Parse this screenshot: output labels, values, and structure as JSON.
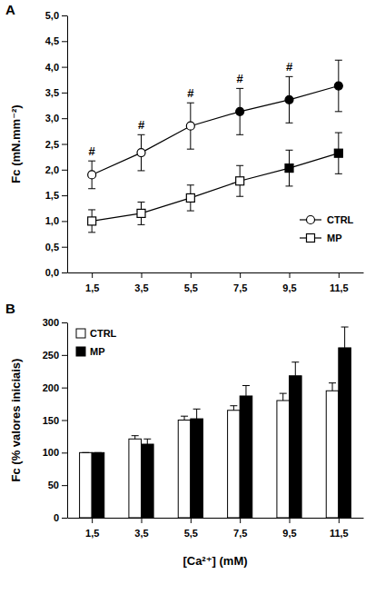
{
  "chart_data": [
    {
      "type": "line",
      "title": "A",
      "ylabel": "Fc (mN.mm⁻²)",
      "categories": [
        "1,5",
        "3,5",
        "5,5",
        "7,5",
        "9,5",
        "11,5"
      ],
      "series": [
        {
          "name": "CTRL",
          "color": "#000000",
          "colors": [
            "#ffffff",
            "#ffffff",
            "#ffffff",
            "#000000",
            "#000000",
            "#000000"
          ],
          "marker": "circle",
          "line_style": "solid",
          "values": [
            1.9,
            2.33,
            2.85,
            3.13,
            3.36,
            3.63
          ],
          "errors": [
            0.27,
            0.35,
            0.45,
            0.45,
            0.45,
            0.5
          ]
        },
        {
          "name": "MP",
          "color": "#000000",
          "colors": [
            "#ffffff",
            "#ffffff",
            "#ffffff",
            "#ffffff",
            "#000000",
            "#000000"
          ],
          "marker": "square",
          "line_style": "solid",
          "values": [
            1.0,
            1.15,
            1.45,
            1.78,
            2.03,
            2.32
          ],
          "errors": [
            0.22,
            0.22,
            0.25,
            0.3,
            0.35,
            0.4
          ]
        }
      ],
      "ylim": [
        0,
        5
      ],
      "yticks": [
        {
          "value": 0,
          "label": "0,0"
        },
        {
          "value": 0.5,
          "label": "0,5"
        },
        {
          "value": 1,
          "label": "1,0"
        },
        {
          "value": 1.5,
          "label": "1,5"
        },
        {
          "value": 2,
          "label": "2,0"
        },
        {
          "value": 2.5,
          "label": "2,5"
        },
        {
          "value": 3,
          "label": "3,0"
        },
        {
          "value": 3.5,
          "label": "3,5"
        },
        {
          "value": 4,
          "label": "4,0"
        },
        {
          "value": 4.5,
          "label": "4,5"
        },
        {
          "value": 5,
          "label": "5,0"
        }
      ],
      "legend": "lower right",
      "annotations": [
        {
          "text": "#",
          "category": "1,5"
        },
        {
          "text": "#",
          "category": "3,5"
        },
        {
          "text": "#",
          "category": "5,5"
        },
        {
          "text": "#",
          "category": "7,5"
        },
        {
          "text": "#",
          "category": "9,5"
        }
      ]
    },
    {
      "type": "bar",
      "title": "B",
      "xlabel": "[Ca²⁺] (mM)",
      "ylabel": "Fc (% valores iniciais)",
      "categories": [
        "1,5",
        "3,5",
        "5,5",
        "7,5",
        "9,5",
        "11,5"
      ],
      "series": [
        {
          "name": "CTRL",
          "color": "#ffffff",
          "values": [
            100,
            121,
            150,
            165,
            180,
            195
          ],
          "errors": [
            0,
            5,
            6,
            7,
            11,
            12
          ]
        },
        {
          "name": "MP",
          "color": "#000000",
          "values": [
            100,
            113,
            152,
            187,
            218,
            261
          ],
          "errors": [
            0,
            8,
            15,
            16,
            21,
            32
          ]
        }
      ],
      "ylim": [
        0,
        300
      ],
      "yticks": [
        0,
        50,
        100,
        150,
        200,
        250,
        300
      ],
      "legend": "upper left"
    }
  ]
}
